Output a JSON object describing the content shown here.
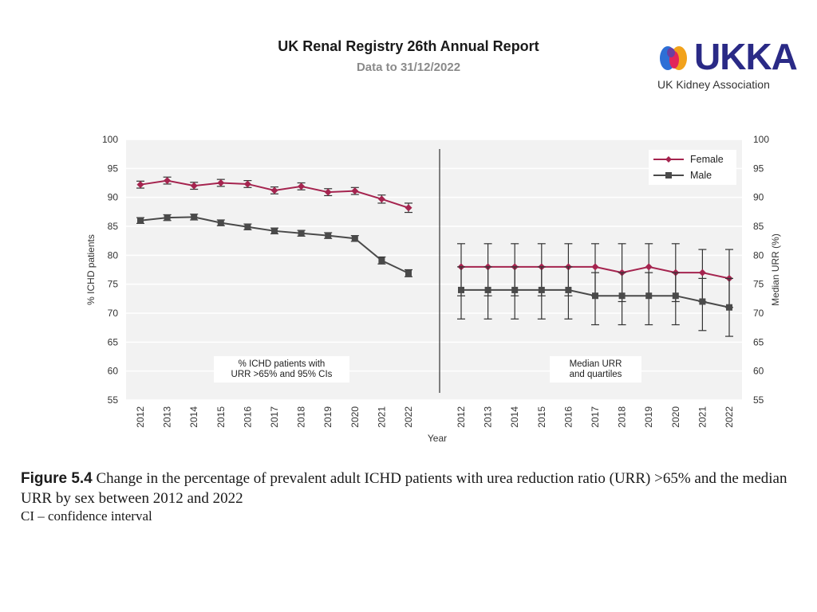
{
  "header": {
    "title": "UK Renal Registry 26th Annual Report",
    "subtitle": "Data to 31/12/2022"
  },
  "logo": {
    "wordmark": "UKKA",
    "name": "UK Kidney Association"
  },
  "caption": {
    "figure_label": "Figure 5.4",
    "text": "Change in the percentage of prevalent adult ICHD patients with urea reduction ratio (URR) >65% and the median URR by sex between 2012 and 2022",
    "note": "CI – confidence interval"
  },
  "colors": {
    "female": "#a5244f",
    "male": "#4a4a4a",
    "panel_bg": "#f2f2f2",
    "grid": "#ffffff"
  },
  "chart_data": {
    "type": "line",
    "xlabel": "Year",
    "ylabel_left": "% ICHD patients",
    "ylabel_right": "Median URR (%)",
    "ylim": [
      55,
      100
    ],
    "yticks": [
      55,
      60,
      65,
      70,
      75,
      80,
      85,
      90,
      95,
      100
    ],
    "legend": {
      "position": "top-right",
      "entries": [
        "Female",
        "Male"
      ]
    },
    "panels": [
      {
        "name": "ichd_percentage",
        "annotation": [
          "% ICHD patients with",
          "URR >65% and 95% CIs"
        ],
        "categories": [
          "2012",
          "2013",
          "2014",
          "2015",
          "2016",
          "2017",
          "2018",
          "2019",
          "2020",
          "2021",
          "2022"
        ],
        "series": [
          {
            "name": "Female",
            "values": [
              92.2,
              92.9,
              92.0,
              92.5,
              92.3,
              91.2,
              91.9,
              90.9,
              91.1,
              89.7,
              88.2
            ],
            "lower": [
              91.6,
              92.3,
              91.4,
              91.9,
              91.7,
              90.6,
              91.3,
              90.3,
              90.5,
              89.0,
              87.4
            ],
            "upper": [
              92.8,
              93.5,
              92.6,
              93.1,
              92.9,
              91.8,
              92.5,
              91.5,
              91.7,
              90.4,
              89.0
            ]
          },
          {
            "name": "Male",
            "values": [
              86.0,
              86.5,
              86.6,
              85.6,
              84.9,
              84.2,
              83.8,
              83.4,
              82.9,
              79.1,
              76.9
            ],
            "lower": [
              85.5,
              86.0,
              86.1,
              85.1,
              84.4,
              83.7,
              83.3,
              82.9,
              82.4,
              78.5,
              76.3
            ],
            "upper": [
              86.5,
              87.0,
              87.1,
              86.1,
              85.4,
              84.7,
              84.3,
              83.9,
              83.4,
              79.7,
              77.5
            ]
          }
        ]
      },
      {
        "name": "median_urr",
        "annotation": [
          "Median URR",
          "and quartiles"
        ],
        "categories": [
          "2012",
          "2013",
          "2014",
          "2015",
          "2016",
          "2017",
          "2018",
          "2019",
          "2020",
          "2021",
          "2022"
        ],
        "series": [
          {
            "name": "Female",
            "values": [
              78,
              78,
              78,
              78,
              78,
              78,
              77,
              78,
              77,
              77,
              76
            ],
            "lower": [
              73,
              73,
              73,
              73,
              73,
              73,
              72,
              73,
              72,
              72,
              71
            ],
            "upper": [
              82,
              82,
              82,
              82,
              82,
              82,
              82,
              82,
              82,
              81,
              81
            ]
          },
          {
            "name": "Male",
            "values": [
              74,
              74,
              74,
              74,
              74,
              73,
              73,
              73,
              73,
              72,
              71
            ],
            "lower": [
              69,
              69,
              69,
              69,
              69,
              68,
              68,
              68,
              68,
              67,
              66
            ],
            "upper": [
              78,
              78,
              78,
              78,
              78,
              77,
              77,
              77,
              77,
              76,
              76
            ]
          }
        ]
      }
    ]
  }
}
